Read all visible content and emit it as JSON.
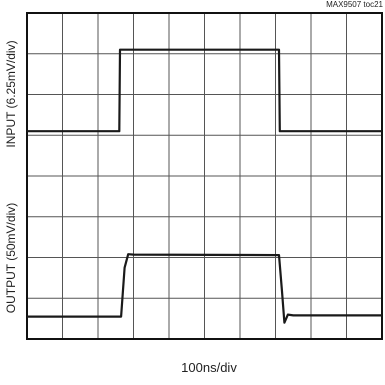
{
  "chart_data": {
    "type": "line",
    "figure_id": "MAX9507 toc21",
    "xlabel": "100ns/div",
    "grid": true,
    "grid_divisions": {
      "x": 10,
      "y": 8
    },
    "x_unit": "divisions",
    "xlim": [
      0,
      10
    ],
    "series": [
      {
        "name": "INPUT (6.25mV/div)",
        "vlim": [
          0,
          4
        ],
        "x": [
          0,
          2.6,
          2.62,
          7.1,
          7.12,
          10
        ],
        "y": [
          1.1,
          1.1,
          3.1,
          3.1,
          1.1,
          1.1
        ]
      },
      {
        "name": "OUTPUT (50mV/div)",
        "vlim": [
          0,
          4
        ],
        "x": [
          0,
          2.65,
          2.75,
          2.85,
          3.0,
          7.1,
          7.18,
          7.25,
          7.35,
          7.5,
          10
        ],
        "y": [
          0.55,
          0.55,
          1.75,
          2.08,
          2.07,
          2.06,
          1.2,
          0.4,
          0.6,
          0.58,
          0.58
        ]
      }
    ]
  },
  "colors": {
    "trace": "#1a1a1a",
    "grid": "#555555",
    "frame": "#111111"
  }
}
